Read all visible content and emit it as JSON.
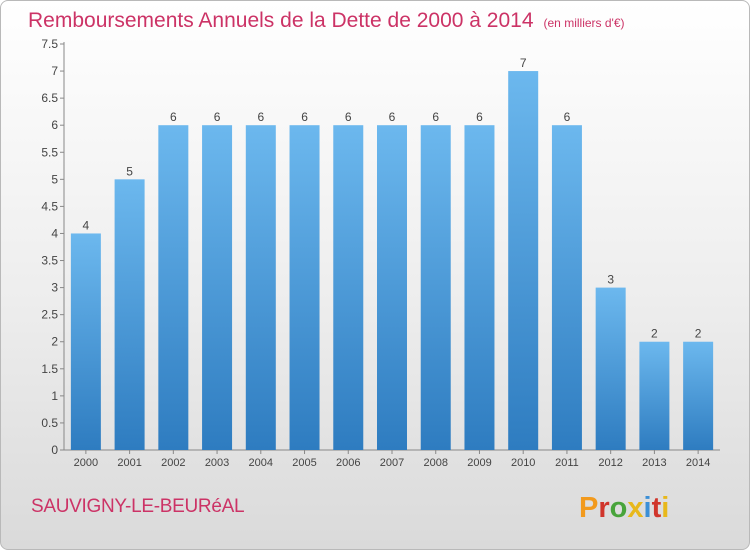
{
  "header": {
    "title": "Remboursements Annuels de la Dette de 2000 à 2014",
    "unit": "(en milliers d'€)"
  },
  "footer": {
    "commune": "SAUVIGNY-LE-BEURéAL",
    "logo_text": "Proxiti"
  },
  "colors": {
    "title": "#cc3366",
    "bar_light": "#6cb8ee",
    "bar_dark": "#2e7cc0",
    "logo_letters": [
      "#f29a1d",
      "#d0352b",
      "#48a43b",
      "#e8b81b",
      "#3b8fd6",
      "#d0352b",
      "#e8b81b"
    ]
  },
  "chart_data": {
    "type": "bar",
    "title": "Remboursements Annuels de la Dette de 2000 à 2014",
    "xlabel": "",
    "ylabel": "",
    "categories": [
      "2000",
      "2001",
      "2002",
      "2003",
      "2004",
      "2005",
      "2006",
      "2007",
      "2008",
      "2009",
      "2010",
      "2011",
      "2012",
      "2013",
      "2014"
    ],
    "values": [
      4,
      5,
      6,
      6,
      6,
      6,
      6,
      6,
      6,
      6,
      7,
      6,
      3,
      2,
      2
    ],
    "data_labels": [
      "4",
      "5",
      "6",
      "6",
      "6",
      "6",
      "6",
      "6",
      "6",
      "6",
      "7",
      "6",
      "3",
      "2",
      "2"
    ],
    "ylim": [
      0,
      7.5
    ],
    "yticks": [
      0,
      0.5,
      1,
      1.5,
      2,
      2.5,
      3,
      3.5,
      4,
      4.5,
      5,
      5.5,
      6,
      6.5,
      7,
      7.5
    ],
    "ytick_labels": [
      "0",
      "0.5",
      "1",
      "1.5",
      "2",
      "2.5",
      "3",
      "3.5",
      "4",
      "4.5",
      "5",
      "5.5",
      "6",
      "6.5",
      "7",
      "7.5"
    ],
    "grid": false,
    "legend": "none"
  }
}
